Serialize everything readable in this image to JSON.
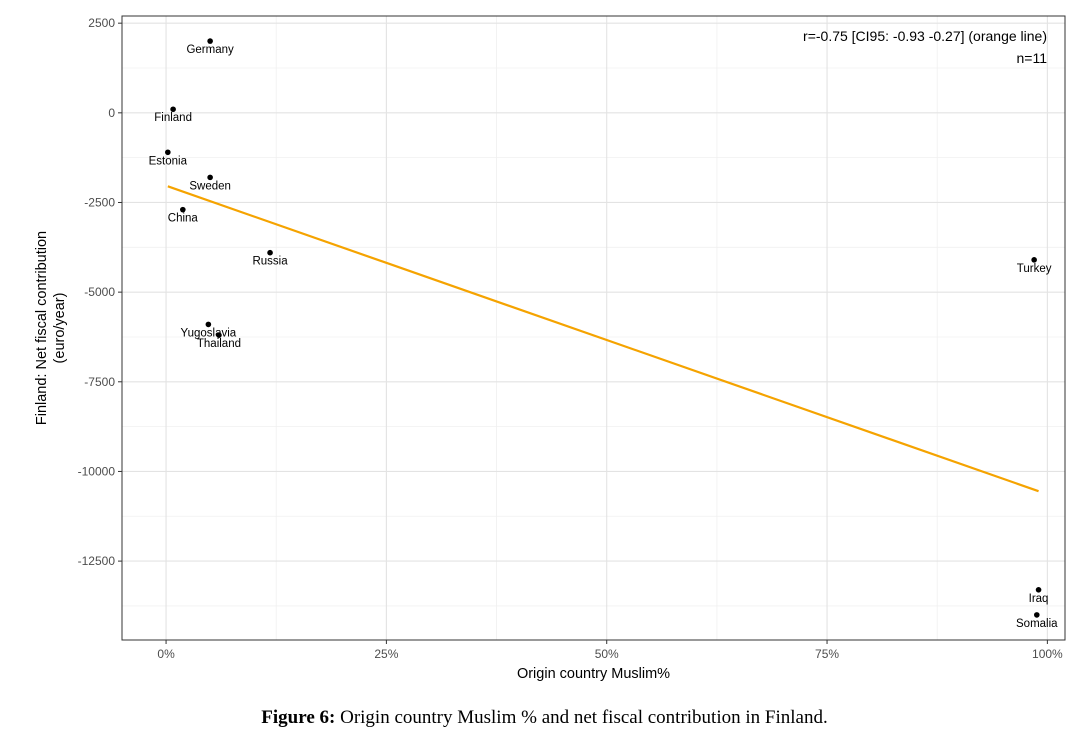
{
  "chart_data": {
    "type": "scatter",
    "title": "",
    "xlabel": "Origin country Muslim%",
    "ylabel_lines": [
      "Finland: Net fiscal contribution",
      "(euro/year)"
    ],
    "xlim": [
      -0.05,
      1.02
    ],
    "ylim": [
      -14700,
      2700
    ],
    "x_ticks": [
      0,
      0.25,
      0.5,
      0.75,
      1.0
    ],
    "x_tick_labels": [
      "0%",
      "25%",
      "50%",
      "75%",
      "100%"
    ],
    "y_ticks": [
      2500,
      0,
      -2500,
      -5000,
      -7500,
      -10000,
      -12500
    ],
    "y_tick_labels": [
      "2500",
      "0",
      "-2500",
      "-5000",
      "-7500",
      "-10000",
      "-12500"
    ],
    "grid": true,
    "points": [
      {
        "label": "Germany",
        "x": 0.05,
        "y": 2000
      },
      {
        "label": "Finland",
        "x": 0.008,
        "y": 100
      },
      {
        "label": "Estonia",
        "x": 0.002,
        "y": -1100
      },
      {
        "label": "Sweden",
        "x": 0.05,
        "y": -1800
      },
      {
        "label": "China",
        "x": 0.019,
        "y": -2700
      },
      {
        "label": "Russia",
        "x": 0.118,
        "y": -3900
      },
      {
        "label": "Yugoslavia",
        "x": 0.048,
        "y": -5900
      },
      {
        "label": "Thailand",
        "x": 0.06,
        "y": -6200
      },
      {
        "label": "Turkey",
        "x": 0.985,
        "y": -4100
      },
      {
        "label": "Iraq",
        "x": 0.99,
        "y": -13300
      },
      {
        "label": "Somalia",
        "x": 0.988,
        "y": -14000
      }
    ],
    "fit_line": {
      "color": "#f5a300",
      "x": [
        0.002,
        0.99
      ],
      "y": [
        -2050,
        -10550
      ]
    },
    "annotations": [
      "r=-0.75 [CI95: -0.93 -0.27] (orange line)",
      "n=11"
    ]
  },
  "caption": {
    "label": "Figure 6:",
    "text": " Origin country Muslim % and net fiscal contribution in Finland."
  }
}
